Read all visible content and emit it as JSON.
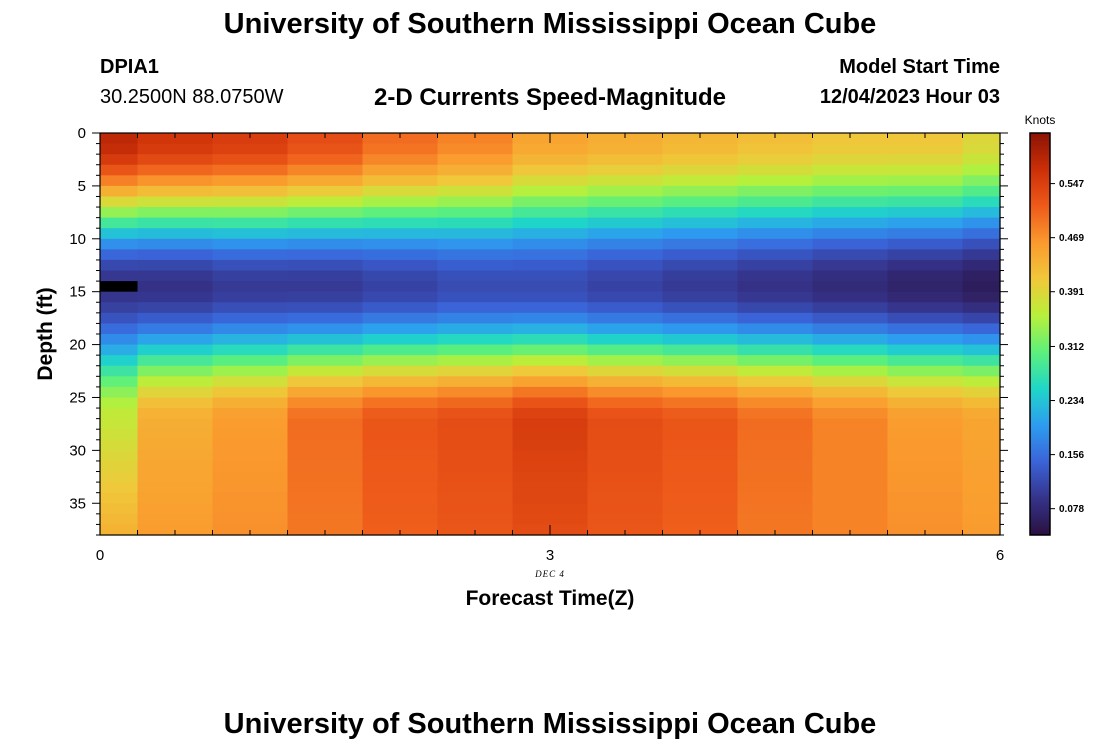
{
  "header": {
    "title": "University of Southern Mississippi Ocean Cube",
    "station": "DPIA1",
    "coordinates": "30.2500N  88.0750W",
    "subtitle": "2-D Currents Speed-Magnitude",
    "model_start_label": "Model Start Time",
    "model_start_value": "12/04/2023 Hour 03"
  },
  "footer": {
    "repeated_title": "University of Southern Mississippi Ocean Cube"
  },
  "chart_data": {
    "type": "heatmap",
    "title": "2-D Currents Speed-Magnitude",
    "xlabel": "Forecast Time(Z)",
    "ylabel": "Depth (ft)",
    "x_date_label": "DEC 4",
    "xlim": [
      0,
      6
    ],
    "ylim": [
      0,
      38
    ],
    "y_inverted": true,
    "x_ticks": [
      0,
      3,
      6
    ],
    "y_ticks": [
      0,
      5,
      10,
      15,
      20,
      25,
      30,
      35
    ],
    "colorbar": {
      "label": "Knots",
      "vmin": 0.04,
      "vmax": 0.62,
      "ticks": [
        "0.078",
        "0.156",
        "0.234",
        "0.312",
        "0.391",
        "0.469",
        "0.547"
      ],
      "colors": [
        "#2a1040",
        "#35338a",
        "#3a63d8",
        "#2d9cf0",
        "#1fd6c8",
        "#5cf07c",
        "#b8f03a",
        "#f0c83a",
        "#fa9a2e",
        "#ee5a1a",
        "#cc2f08",
        "#8c1204"
      ]
    },
    "time_steps": [
      0,
      0.5,
      1,
      1.5,
      2,
      2.5,
      3,
      3.5,
      4,
      4.5,
      5,
      5.5,
      6
    ],
    "depth_levels": [
      0,
      1,
      2,
      3,
      4,
      5,
      6,
      7,
      8,
      9,
      10,
      11,
      12,
      13,
      14,
      15,
      16,
      17,
      18,
      19,
      20,
      21,
      22,
      23,
      24,
      25,
      26,
      27,
      28,
      29,
      30,
      31,
      32,
      33,
      34,
      35,
      36,
      37
    ],
    "missing_cells": [
      {
        "time_index": 0,
        "depth": 14
      }
    ],
    "profile_model": {
      "surface_speed": [
        0.58,
        0.56,
        0.55,
        0.53,
        0.5,
        0.48,
        0.45,
        0.44,
        0.43,
        0.42,
        0.41,
        0.41,
        0.39
      ],
      "minimum_speed": [
        0.09,
        0.09,
        0.1,
        0.1,
        0.11,
        0.12,
        0.12,
        0.11,
        0.1,
        0.09,
        0.08,
        0.07,
        0.06
      ],
      "minimum_depth": 14,
      "deep_peak_speed": [
        0.37,
        0.44,
        0.46,
        0.5,
        0.52,
        0.53,
        0.55,
        0.53,
        0.52,
        0.5,
        0.48,
        0.46,
        0.45
      ],
      "deep_peak_depth": 27,
      "bottom_speed": [
        0.44,
        0.46,
        0.47,
        0.49,
        0.51,
        0.52,
        0.53,
        0.52,
        0.51,
        0.49,
        0.48,
        0.47,
        0.46
      ]
    }
  }
}
